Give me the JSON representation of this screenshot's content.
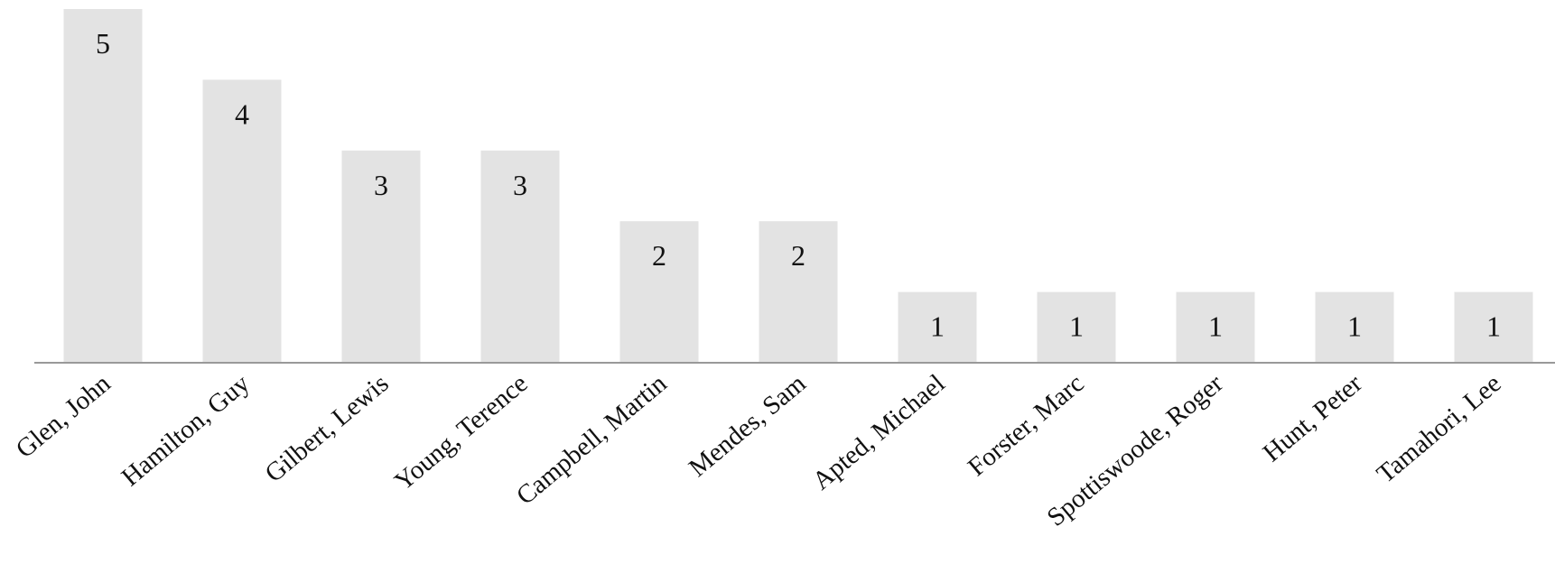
{
  "chart_data": {
    "type": "bar",
    "categories": [
      "Glen, John",
      "Hamilton, Guy",
      "Gilbert, Lewis",
      "Young, Terence",
      "Campbell, Martin",
      "Mendes, Sam",
      "Apted, Michael",
      "Forster, Marc",
      "Spottiswoode, Roger",
      "Hunt, Peter",
      "Tamahori, Lee"
    ],
    "values": [
      5,
      4,
      3,
      3,
      2,
      2,
      1,
      1,
      1,
      1,
      1
    ],
    "data_labels": true,
    "title": "",
    "xlabel": "",
    "ylabel": "",
    "ylim": [
      0,
      5
    ],
    "grid": false,
    "legend": "none",
    "colors": {
      "bar": "#e3e3e3",
      "axis": "#999999",
      "text": "#111111"
    }
  }
}
